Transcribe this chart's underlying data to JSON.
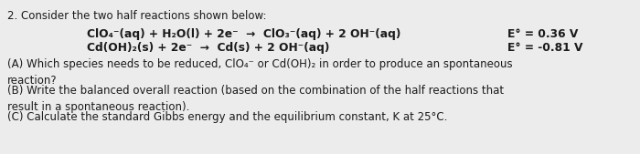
{
  "bg_color": "#ececec",
  "title_line": "2. Consider the two half reactions shown below:",
  "rxn1_left": "ClO₄⁻(aq) + H₂O(l) + 2e⁻  →  ClO₃⁻(aq) + 2 OH⁻(aq)",
  "rxn2_left": "Cd(OH)₂(s) + 2e⁻  →  Cd(s) + 2 OH⁻(aq)",
  "rxn1_right": "E° = 0.36 V",
  "rxn2_right": "E° = -0.81 V",
  "part_A": "(A) Which species needs to be reduced, ClO₄⁻ or Cd(OH)₂ in order to produce an spontaneous\nreaction?",
  "part_B": "(B) Write the balanced overall reaction (based on the combination of the half reactions that\nresult in a spontaneous reaction).",
  "part_C": "(C) Calculate the standard Gibbs energy and the equilibrium constant, K at 25°C.",
  "font_size_title": 8.5,
  "font_size_rxn": 8.8,
  "font_size_body": 8.5,
  "text_color": "#1a1a1a"
}
